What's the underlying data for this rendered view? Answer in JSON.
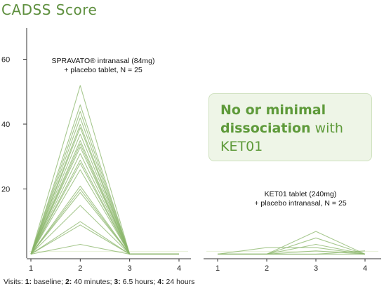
{
  "title": "CADSS Score",
  "callout": {
    "bold": "No or minimal dissociation",
    "normal": "with KET01"
  },
  "footnote": {
    "prefix": "Visits: ",
    "items": [
      {
        "num": "1:",
        "text": " baseline; "
      },
      {
        "num": "2:",
        "text": " 40 minutes; "
      },
      {
        "num": "3:",
        "text": " 6.5 hours; "
      },
      {
        "num": "4:",
        "text": " 24 hours"
      }
    ]
  },
  "colors": {
    "series": "#8ab56a",
    "accent": "#5e8f3e",
    "axis": "#333333",
    "threshold": "#eaf2dc"
  },
  "chart_data": [
    {
      "type": "line",
      "x": [
        1,
        2,
        3,
        4
      ],
      "xticks": [
        "1",
        "2",
        "3",
        "4"
      ],
      "yticks": [
        "20",
        "40",
        "60"
      ],
      "ylim": [
        0,
        66
      ],
      "xlim": [
        0.7,
        4.3
      ],
      "annotation": [
        "SPRAVATO® intranasal (84mg)",
        "+ placebo tablet, N = 25"
      ],
      "threshold": 4,
      "series": [
        {
          "values": [
            1,
            53,
            1,
            1
          ]
        },
        {
          "values": [
            1,
            47,
            1,
            1
          ]
        },
        {
          "values": [
            1,
            45,
            1,
            1
          ]
        },
        {
          "values": [
            1,
            43,
            1,
            1
          ]
        },
        {
          "values": [
            1,
            41,
            1,
            1
          ]
        },
        {
          "values": [
            1,
            40,
            1,
            1
          ]
        },
        {
          "values": [
            1,
            38,
            1,
            1
          ]
        },
        {
          "values": [
            1,
            36,
            1,
            1
          ]
        },
        {
          "values": [
            1,
            35,
            1,
            1
          ]
        },
        {
          "values": [
            1,
            34,
            1,
            1
          ]
        },
        {
          "values": [
            1,
            32,
            1,
            1
          ]
        },
        {
          "values": [
            1,
            30,
            1,
            1
          ]
        },
        {
          "values": [
            1,
            29,
            1,
            1
          ]
        },
        {
          "values": [
            1,
            27,
            1,
            1
          ]
        },
        {
          "values": [
            1,
            22,
            1,
            1
          ]
        },
        {
          "values": [
            1,
            21,
            1,
            1
          ]
        },
        {
          "values": [
            1,
            20,
            1,
            1
          ]
        },
        {
          "values": [
            1,
            16,
            1,
            1
          ]
        },
        {
          "values": [
            1,
            11,
            1,
            1
          ]
        },
        {
          "values": [
            1,
            10,
            1,
            1
          ]
        },
        {
          "values": [
            1,
            4,
            1,
            1
          ]
        }
      ]
    },
    {
      "type": "line",
      "x": [
        1,
        2,
        3,
        4
      ],
      "xticks": [
        "1",
        "2",
        "3",
        "4"
      ],
      "yticks": [],
      "ylim": [
        0,
        66
      ],
      "xlim": [
        0.8,
        4.1
      ],
      "annotation": [
        "KET01 tablet (240mg)",
        "+ placebo intranasal, N = 25"
      ],
      "threshold": 4,
      "series": [
        {
          "values": [
            1,
            1,
            8,
            1
          ]
        },
        {
          "values": [
            1,
            1,
            6,
            1
          ]
        },
        {
          "values": [
            1,
            1,
            4,
            1
          ]
        },
        {
          "values": [
            1,
            3,
            3,
            1
          ]
        },
        {
          "values": [
            1,
            1,
            2,
            1
          ]
        },
        {
          "values": [
            1,
            1,
            1,
            2
          ]
        },
        {
          "values": [
            1,
            1,
            1,
            1
          ]
        }
      ]
    }
  ]
}
